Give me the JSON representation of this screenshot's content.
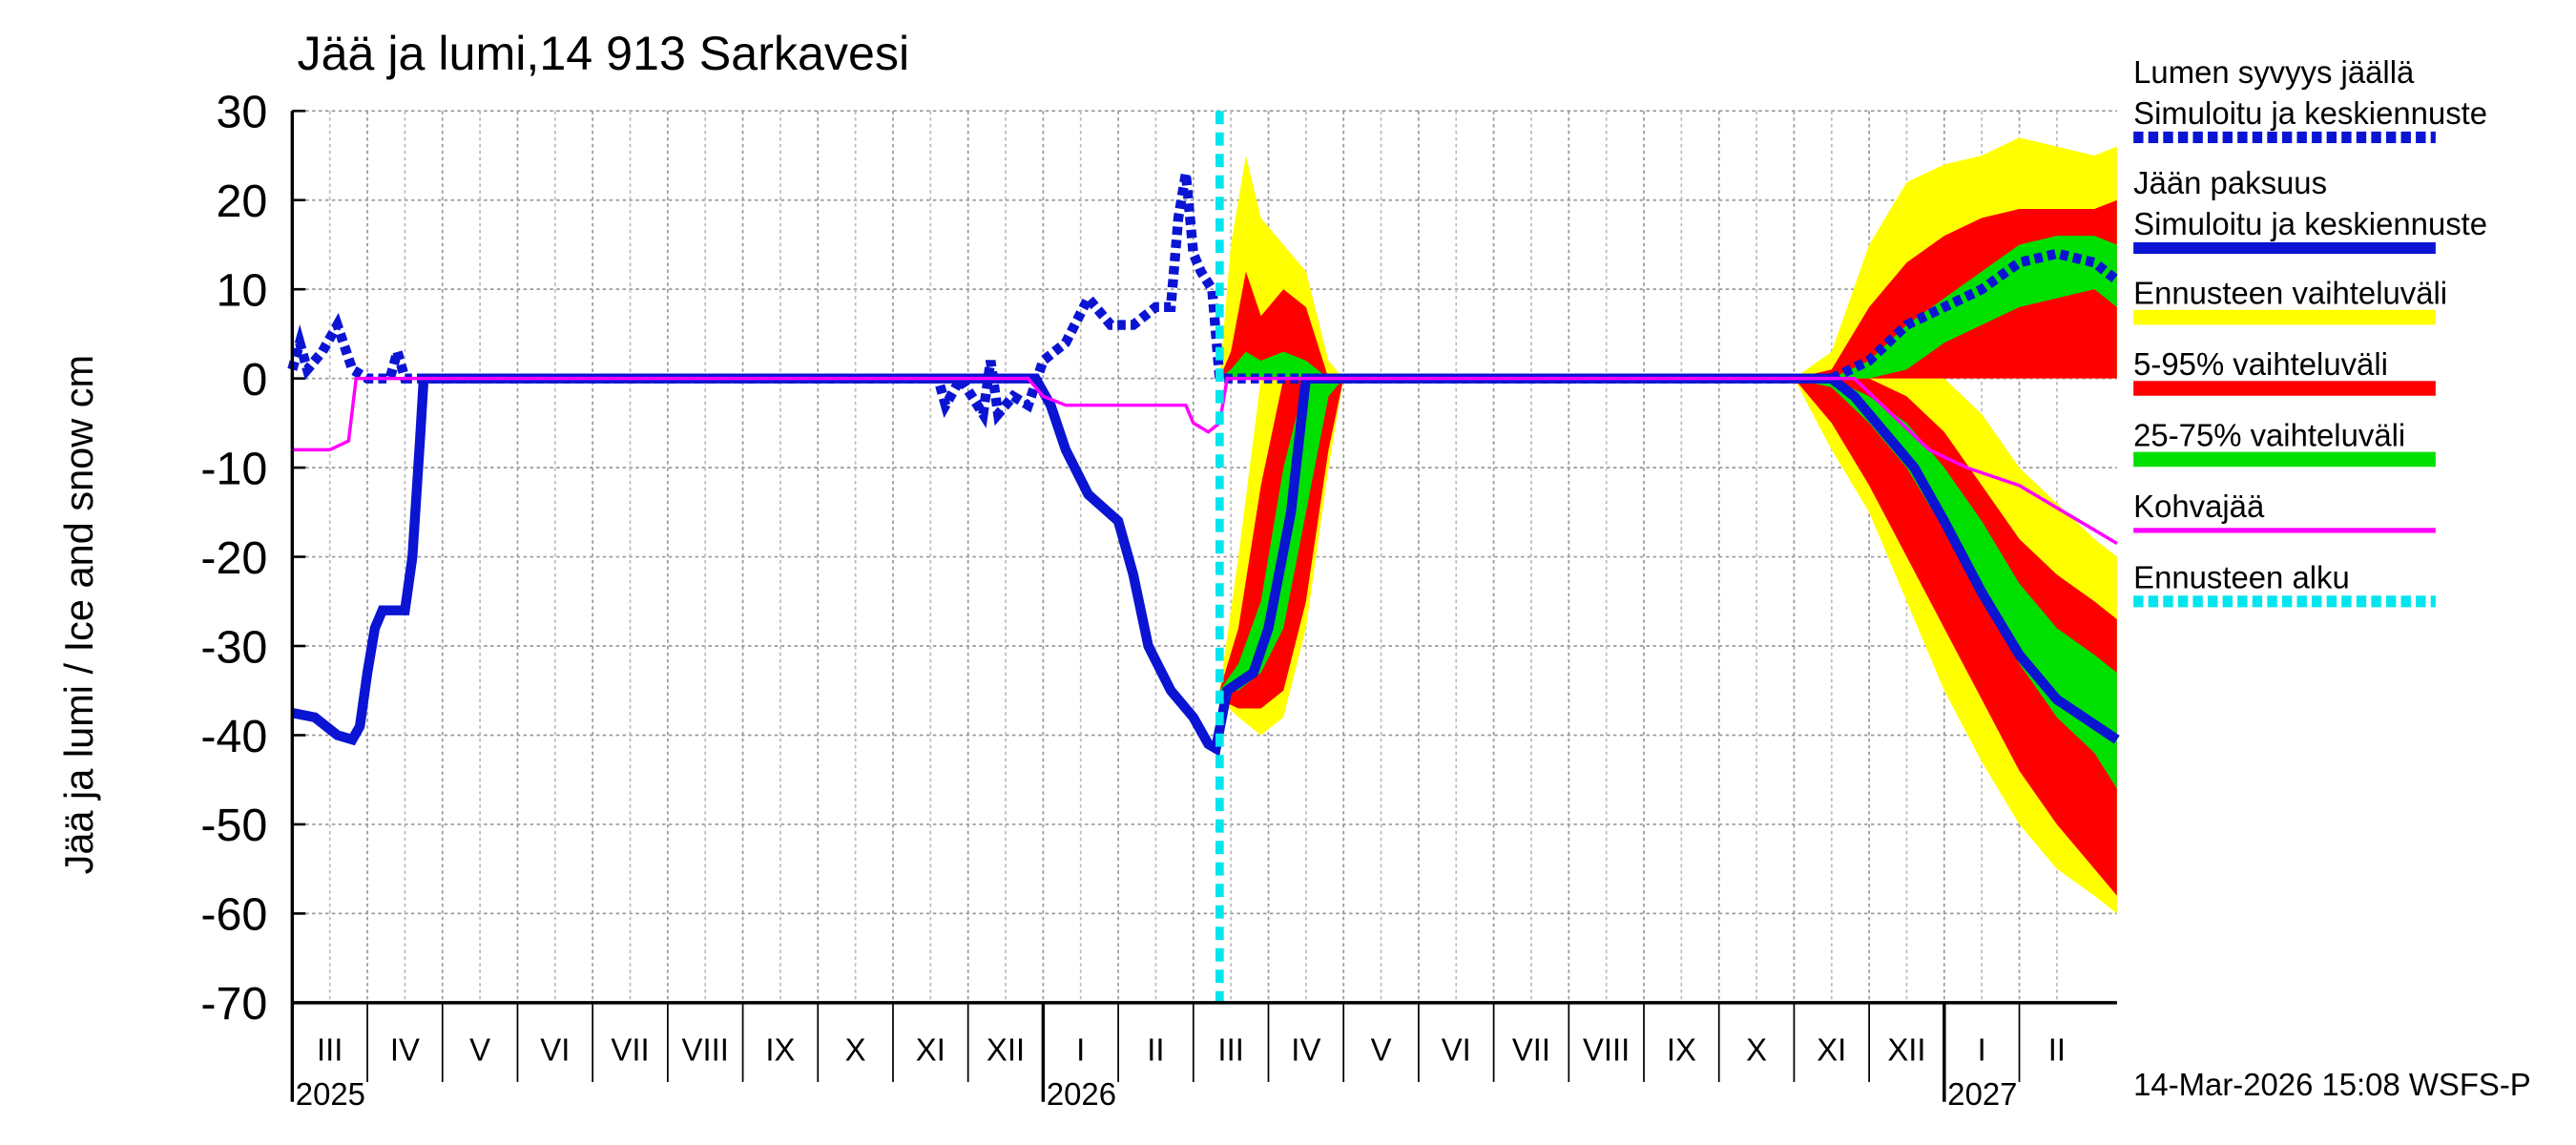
{
  "chart_data": {
    "type": "line",
    "title": "Jää ja lumi,14 913 Sarkavesi",
    "y_label": "Jää ja lumi / Ice and snow    cm",
    "timestamp": "14-Mar-2026 15:08 WSFS-P",
    "ylim": [
      -70,
      30
    ],
    "yticks": [
      30,
      20,
      10,
      0,
      -10,
      -20,
      -30,
      -40,
      -50,
      -60,
      -70
    ],
    "xlim": [
      0,
      24.3
    ],
    "grid": true,
    "months": [
      "III",
      "IV",
      "V",
      "VI",
      "VII",
      "VIII",
      "IX",
      "X",
      "XI",
      "XII",
      "I",
      "II",
      "III",
      "IV",
      "V",
      "VI",
      "VII",
      "VIII",
      "IX",
      "X",
      "XI",
      "XII",
      "I",
      "II"
    ],
    "years": [
      {
        "value": 0,
        "label": "2025"
      },
      {
        "value": 10,
        "label": "2026"
      },
      {
        "value": 22,
        "label": "2027"
      }
    ],
    "series": [
      {
        "name": "Lumen syvyys jäällä",
        "subtitle": "Simuloitu ja keskiennuste",
        "kind": "line",
        "color": "#0a14d2",
        "dash": true,
        "x": [
          0,
          0.1,
          0.2,
          0.4,
          0.6,
          0.8,
          1.0,
          1.3,
          1.4,
          1.5,
          8.6,
          8.7,
          8.9,
          9.2,
          9.3,
          9.4,
          9.6,
          9.8,
          10.0,
          10.3,
          10.6,
          10.9,
          11.2,
          11.5,
          11.7,
          11.8,
          11.9,
          12.0,
          12.1,
          12.25,
          12.35,
          20.0,
          20.5,
          21.0,
          21.5,
          22.0,
          22.5,
          23.0,
          23.5,
          24.0,
          24.3
        ],
        "values": [
          1,
          4,
          1,
          3,
          6,
          1,
          0,
          0,
          3,
          0,
          0,
          -3,
          0,
          -4,
          2,
          -4,
          -2,
          -3,
          2,
          4,
          9,
          6,
          6,
          8,
          8,
          18,
          23,
          14,
          12,
          10,
          0,
          0,
          0,
          2,
          6,
          8,
          10,
          13,
          14,
          13,
          11
        ]
      },
      {
        "name": "Jään paksuus",
        "subtitle": "Simuloitu ja keskiennuste",
        "kind": "line",
        "color": "#0a14d2",
        "dash": false,
        "x": [
          0,
          0.3,
          0.6,
          0.8,
          0.9,
          1.0,
          1.1,
          1.2,
          1.5,
          1.6,
          1.7,
          1.75,
          9.9,
          10.1,
          10.3,
          10.6,
          11.0,
          11.2,
          11.4,
          11.7,
          12.0,
          12.2,
          12.3,
          12.45,
          12.8,
          13.0,
          13.3,
          13.5,
          20.5,
          20.8,
          21.2,
          21.6,
          22.0,
          22.5,
          23.0,
          23.5,
          24.3
        ],
        "values": [
          -37.5,
          -38,
          -40,
          -40.5,
          -39,
          -33,
          -28,
          -26,
          -26,
          -20,
          -7,
          0,
          0,
          -3,
          -8,
          -13,
          -16,
          -22,
          -30,
          -35,
          -38,
          -41,
          -41.5,
          -35,
          -33,
          -28,
          -15,
          0,
          0,
          -2,
          -6,
          -10,
          -16,
          -24,
          -31,
          -36,
          -40.5
        ]
      },
      {
        "name": "Ennusteen vaihteluväli",
        "kind": "band",
        "color": "#ffff00",
        "areas": [
          {
            "x": [
              12.35,
              12.6,
              12.9,
              13.2,
              13.5,
              13.8,
              14.0
            ],
            "low": [
              -36,
              -38,
              -40,
              -38,
              -28,
              -10,
              0
            ],
            "high": [
              -35,
              -20,
              0,
              0,
              0,
              0,
              0
            ]
          },
          {
            "x": [
              12.35,
              12.5,
              12.7,
              12.9,
              13.2,
              13.5,
              13.8,
              14.0
            ],
            "low": [
              0,
              0,
              0,
              0,
              0,
              0,
              0,
              0
            ],
            "high": [
              0,
              15,
              25,
              18,
              15,
              12,
              2,
              0
            ]
          },
          {
            "x": [
              20.0,
              20.5,
              21.0,
              21.5,
              22.0,
              22.5,
              23.0,
              23.5,
              24.0,
              24.3
            ],
            "low": [
              0,
              -8,
              -15,
              -25,
              -35,
              -43,
              -50,
              -55,
              -58,
              -60
            ],
            "high": [
              0,
              0,
              0,
              0,
              0,
              -4,
              -10,
              -14,
              -18,
              -20
            ]
          },
          {
            "x": [
              20.0,
              20.5,
              21.0,
              21.5,
              22.0,
              22.5,
              23.0,
              23.5,
              24.0,
              24.3
            ],
            "low": [
              0,
              0,
              0,
              0,
              0,
              0,
              0,
              0,
              0,
              0
            ],
            "high": [
              0,
              3,
              15,
              22,
              24,
              25,
              27,
              26,
              25,
              26
            ]
          }
        ]
      },
      {
        "name": "5-95% vaihteluväli",
        "kind": "band",
        "color": "#ff0000",
        "areas": [
          {
            "x": [
              12.35,
              12.6,
              12.9,
              13.2,
              13.5,
              13.8,
              14.0
            ],
            "low": [
              -36,
              -37,
              -37,
              -35,
              -25,
              -8,
              0
            ],
            "high": [
              -35,
              -28,
              -12,
              0,
              0,
              0,
              0
            ]
          },
          {
            "x": [
              12.35,
              12.5,
              12.7,
              12.9,
              13.2,
              13.5,
              13.8,
              14.0
            ],
            "low": [
              0,
              0,
              0,
              0,
              0,
              0,
              0,
              0
            ],
            "high": [
              0,
              3,
              12,
              7,
              10,
              8,
              0,
              0
            ]
          },
          {
            "x": [
              20.0,
              20.5,
              21.0,
              21.5,
              22.0,
              22.5,
              23.0,
              23.5,
              24.0,
              24.3
            ],
            "low": [
              0,
              -5,
              -12,
              -20,
              -28,
              -36,
              -44,
              -50,
              -55,
              -58
            ],
            "high": [
              0,
              0,
              0,
              -2,
              -6,
              -12,
              -18,
              -22,
              -25,
              -27
            ]
          },
          {
            "x": [
              20.0,
              20.5,
              21.0,
              21.5,
              22.0,
              22.5,
              23.0,
              23.5,
              24.0,
              24.3
            ],
            "low": [
              0,
              0,
              0,
              0,
              0,
              0,
              0,
              0,
              0,
              0
            ],
            "high": [
              0,
              1,
              8,
              13,
              16,
              18,
              19,
              19,
              19,
              20
            ]
          }
        ]
      },
      {
        "name": "25-75% vaihteluväli",
        "kind": "band",
        "color": "#00e000",
        "areas": [
          {
            "x": [
              12.35,
              12.6,
              12.9,
              13.2,
              13.5,
              13.8,
              14.0
            ],
            "low": [
              -35,
              -35,
              -33,
              -28,
              -15,
              -2,
              0
            ],
            "high": [
              -35,
              -32,
              -25,
              -10,
              0,
              0,
              0
            ]
          },
          {
            "x": [
              12.35,
              12.5,
              12.7,
              12.9,
              13.2,
              13.5,
              13.8,
              14.0
            ],
            "low": [
              0,
              0,
              0,
              0,
              0,
              0,
              0,
              0
            ],
            "high": [
              0,
              1,
              3,
              2,
              3,
              2,
              0,
              0
            ]
          },
          {
            "x": [
              20.0,
              20.5,
              21.0,
              21.5,
              22.0,
              22.5,
              23.0,
              23.5,
              24.0,
              24.3
            ],
            "low": [
              0,
              -1,
              -5,
              -10,
              -17,
              -24,
              -32,
              -38,
              -42,
              -46
            ],
            "high": [
              0,
              0,
              -2,
              -5,
              -10,
              -16,
              -23,
              -28,
              -31,
              -33
            ]
          },
          {
            "x": [
              20.0,
              20.5,
              21.0,
              21.5,
              22.0,
              22.5,
              23.0,
              23.5,
              24.0,
              24.3
            ],
            "low": [
              0,
              0,
              0,
              1,
              4,
              6,
              8,
              9,
              10,
              8
            ],
            "high": [
              0,
              0,
              2,
              6,
              9,
              12,
              15,
              16,
              16,
              15
            ]
          }
        ]
      },
      {
        "name": "Kohvajää",
        "kind": "line",
        "color": "#ff00ff",
        "dash": false,
        "thin": true,
        "x": [
          0,
          0.5,
          0.75,
          0.85,
          9.8,
          10.0,
          10.3,
          11.9,
          12.0,
          12.2,
          12.35,
          12.45,
          20.8,
          21.3,
          21.8,
          22.3,
          23.0,
          23.6,
          24.0,
          24.3
        ],
        "values": [
          -8,
          -8,
          -7,
          0,
          0,
          -2,
          -3,
          -3,
          -5,
          -6,
          -5,
          0,
          0,
          -4,
          -8,
          -10,
          -12,
          -15,
          -17,
          -18.5
        ]
      },
      {
        "name": "Ennusteen alku",
        "kind": "vline",
        "color": "#00e5ee",
        "x": 12.35
      }
    ]
  }
}
